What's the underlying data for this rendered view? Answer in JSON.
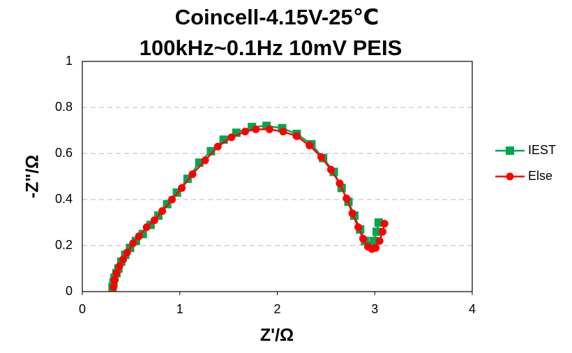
{
  "chart_data": {
    "type": "scatter",
    "title": [
      "Coincell-4.15V-25℃",
      "100kHz~0.1Hz 10mV PEIS"
    ],
    "x_label": "Z'/Ω",
    "y_label": "-Z\"/Ω",
    "xlim": [
      0,
      4
    ],
    "xticks": [
      0,
      1,
      2,
      3,
      4
    ],
    "ylim": [
      0,
      1
    ],
    "yticks": [
      0,
      0.2,
      0.4,
      0.6,
      0.8,
      1
    ],
    "grid": true,
    "legend": "right",
    "series": [
      {
        "name": "IEST",
        "color": "#00a550",
        "marker": "square",
        "x": [
          0.31,
          0.32,
          0.33,
          0.35,
          0.37,
          0.4,
          0.44,
          0.49,
          0.55,
          0.62,
          0.7,
          0.78,
          0.87,
          0.97,
          1.08,
          1.2,
          1.32,
          1.45,
          1.58,
          1.74,
          1.89,
          2.05,
          2.2,
          2.35,
          2.47,
          2.58,
          2.66,
          2.73,
          2.79,
          2.85,
          2.9,
          2.95,
          2.99,
          3.02,
          3.04
        ],
        "values": [
          0.02,
          0.04,
          0.06,
          0.08,
          0.1,
          0.13,
          0.16,
          0.19,
          0.22,
          0.25,
          0.29,
          0.33,
          0.38,
          0.43,
          0.49,
          0.56,
          0.61,
          0.66,
          0.69,
          0.715,
          0.72,
          0.71,
          0.685,
          0.64,
          0.58,
          0.52,
          0.45,
          0.39,
          0.33,
          0.27,
          0.22,
          0.2,
          0.22,
          0.26,
          0.3
        ]
      },
      {
        "name": "Else",
        "color": "#ff0000",
        "marker": "circle",
        "x": [
          0.32,
          0.33,
          0.35,
          0.38,
          0.42,
          0.46,
          0.52,
          0.58,
          0.66,
          0.74,
          0.82,
          0.92,
          1.02,
          1.13,
          1.26,
          1.39,
          1.53,
          1.67,
          1.78,
          1.92,
          2.06,
          2.2,
          2.33,
          2.45,
          2.55,
          2.64,
          2.71,
          2.77,
          2.83,
          2.88,
          2.93,
          2.97,
          3.01,
          3.05,
          3.08,
          3.1
        ],
        "values": [
          0.02,
          0.05,
          0.08,
          0.11,
          0.14,
          0.17,
          0.21,
          0.24,
          0.28,
          0.31,
          0.35,
          0.4,
          0.45,
          0.51,
          0.57,
          0.63,
          0.67,
          0.695,
          0.705,
          0.705,
          0.695,
          0.675,
          0.635,
          0.585,
          0.53,
          0.47,
          0.405,
          0.34,
          0.28,
          0.23,
          0.195,
          0.185,
          0.19,
          0.22,
          0.26,
          0.295
        ]
      }
    ]
  }
}
